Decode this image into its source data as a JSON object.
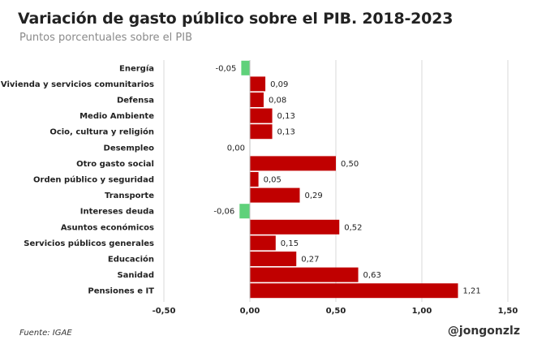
{
  "title": "Variación de gasto público sobre el PIB. 2018-2023",
  "subtitle": "Puntos porcentuales sobre el PIB",
  "source": "Fuente: IGAE",
  "author": "@jongonzlz",
  "chart_data": {
    "type": "bar",
    "orientation": "horizontal",
    "categories": [
      "Energía",
      "Vivienda y servicios comunitarios",
      "Defensa",
      "Medio Ambiente",
      "Ocio, cultura y religión",
      "Desempleo",
      "Otro gasto social",
      "Orden público y seguridad",
      "Transporte",
      "Intereses deuda",
      "Asuntos económicos",
      "Servicios públicos generales",
      "Educación",
      "Sanidad",
      "Pensiones e IT"
    ],
    "values": [
      -0.05,
      0.09,
      0.08,
      0.13,
      0.13,
      0.0,
      0.5,
      0.05,
      0.29,
      -0.06,
      0.52,
      0.15,
      0.27,
      0.63,
      1.21
    ],
    "labels": [
      "-0,05",
      "0,09",
      "0,08",
      "0,13",
      "0,13",
      "0,00",
      "0,50",
      "0,05",
      "0,29",
      "-0,06",
      "0,52",
      "0,15",
      "0,27",
      "0,63",
      "1,21"
    ],
    "xticks": [
      -0.5,
      0.0,
      0.5,
      1.0,
      1.5
    ],
    "xtick_labels": [
      "-0,50",
      "0,00",
      "0,50",
      "1,00",
      "1,50"
    ],
    "xlim": [
      -0.5,
      1.5
    ],
    "grid": true,
    "colors": {
      "positive": "#c00000",
      "negative": "#5fd17a",
      "grid": "#d9d9d9"
    }
  }
}
